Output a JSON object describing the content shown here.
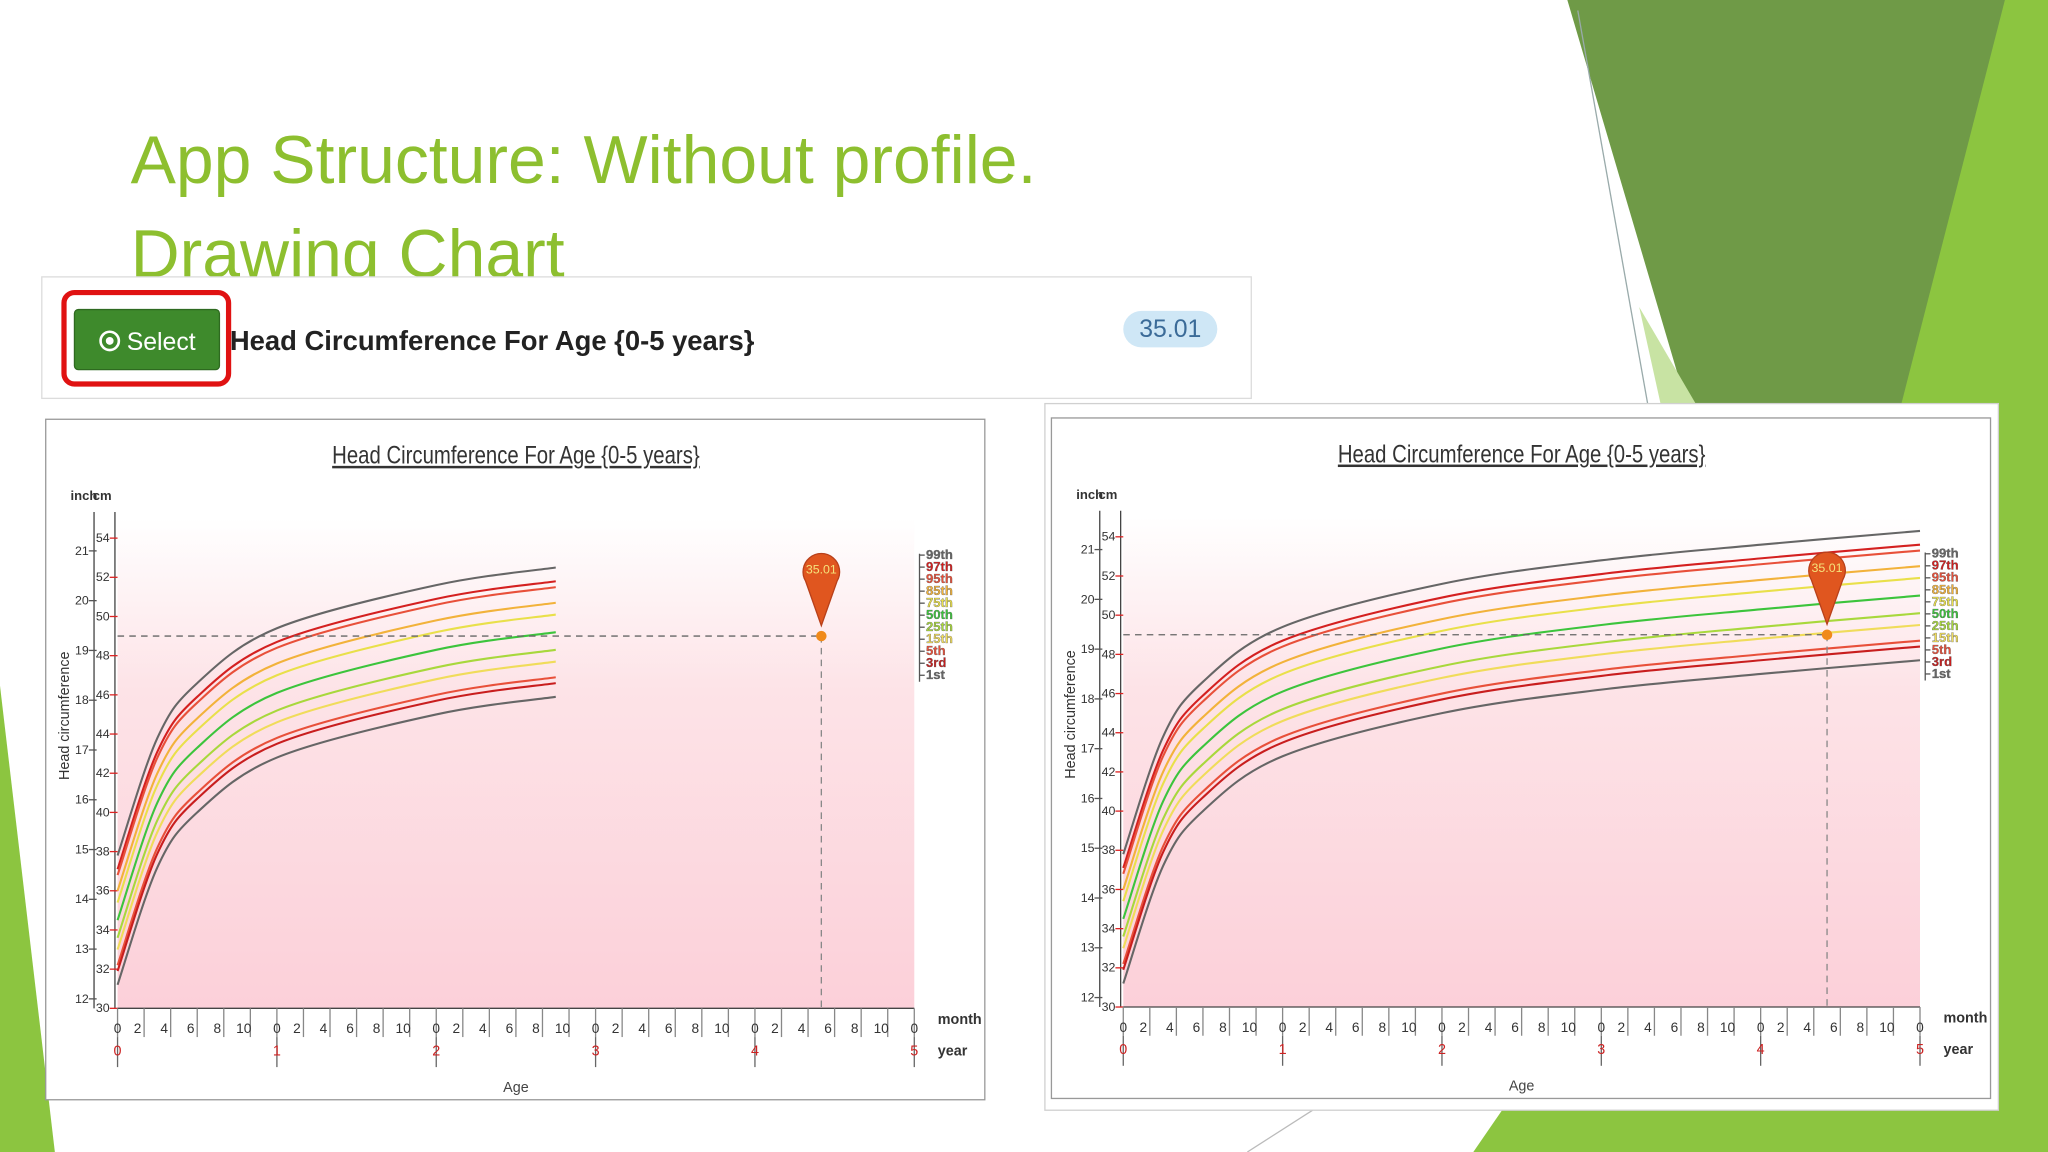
{
  "slide": {
    "title_line1": "App Structure: Without profile.",
    "title_line2": "Drawing Chart"
  },
  "select_bar": {
    "button": "Select",
    "label": "Head Circumference For Age {0-5 years}",
    "badge": "35.01"
  },
  "chart_data": [
    {
      "type": "line",
      "title": "Head Circumference For Age {0-5 years}",
      "y_label": "Head circumference",
      "y_unit": "cm",
      "y2_unit": "inch",
      "x_label": "Age",
      "x_unit": "month",
      "x2_unit": "year",
      "x": [
        0,
        3,
        6,
        12,
        24,
        33
      ],
      "series": [
        {
          "name": "99th",
          "color": "#666666",
          "values": [
            37.8,
            43.8,
            46.6,
            49.4,
            51.6,
            52.5
          ]
        },
        {
          "name": "97th",
          "color": "#d42020",
          "values": [
            37.1,
            43.1,
            45.9,
            48.7,
            50.9,
            51.8
          ]
        },
        {
          "name": "95th",
          "color": "#e8503a",
          "values": [
            36.8,
            42.8,
            45.6,
            48.4,
            50.6,
            51.5
          ]
        },
        {
          "name": "85th",
          "color": "#f2b23a",
          "values": [
            36.0,
            42.0,
            44.8,
            47.6,
            49.8,
            50.7
          ]
        },
        {
          "name": "75th",
          "color": "#e9e04a",
          "values": [
            35.4,
            41.4,
            44.2,
            47.0,
            49.2,
            50.1
          ]
        },
        {
          "name": "50th",
          "color": "#3cc43c",
          "values": [
            34.5,
            40.5,
            43.3,
            46.1,
            48.3,
            49.2
          ]
        },
        {
          "name": "25th",
          "color": "#a8d83c",
          "values": [
            33.6,
            39.6,
            42.4,
            45.2,
            47.4,
            48.3
          ]
        },
        {
          "name": "15th",
          "color": "#f0dc5a",
          "values": [
            33.0,
            39.0,
            41.8,
            44.6,
            46.8,
            47.7
          ]
        },
        {
          "name": "5th",
          "color": "#e8503a",
          "values": [
            32.2,
            38.2,
            41.0,
            43.8,
            46.0,
            46.9
          ]
        },
        {
          "name": "3rd",
          "color": "#c81e1e",
          "values": [
            31.9,
            37.9,
            40.7,
            43.5,
            45.7,
            46.6
          ]
        },
        {
          "name": "1st",
          "color": "#666666",
          "values": [
            31.2,
            37.2,
            40.0,
            42.8,
            45.0,
            45.9
          ]
        }
      ],
      "xlim": [
        0,
        60
      ],
      "xticks": [
        0,
        2,
        4,
        6,
        8,
        10,
        {
          "value": 12,
          "label": "0"
        },
        {
          "value": 14,
          "label": "2"
        },
        {
          "value": 16,
          "label": "4"
        },
        {
          "value": 18,
          "label": "6"
        },
        {
          "value": 20,
          "label": "8"
        },
        {
          "value": 22,
          "label": "10"
        },
        {
          "value": 24,
          "label": "0"
        },
        {
          "value": 26,
          "label": "2"
        },
        {
          "value": 28,
          "label": "4"
        },
        {
          "value": 30,
          "label": "6"
        },
        {
          "value": 32,
          "label": "8"
        },
        {
          "value": 34,
          "label": "10"
        },
        {
          "value": 36,
          "label": "0"
        },
        {
          "value": 38,
          "label": "2"
        },
        {
          "value": 40,
          "label": "4"
        },
        {
          "value": 42,
          "label": "6"
        },
        {
          "value": 44,
          "label": "8"
        },
        {
          "value": 46,
          "label": "10"
        },
        {
          "value": 48,
          "label": "0"
        },
        {
          "value": 50,
          "label": "2"
        },
        {
          "value": 52,
          "label": "4"
        },
        {
          "value": 54,
          "label": "6"
        },
        {
          "value": 56,
          "label": "8"
        },
        {
          "value": 58,
          "label": "10"
        },
        {
          "value": 60,
          "label": "0"
        }
      ],
      "x2lim": [
        0,
        5
      ],
      "x2ticks": [
        0,
        1,
        2,
        3,
        4,
        5
      ],
      "ylim": [
        30,
        55
      ],
      "yticks": [
        30,
        32,
        34,
        36,
        38,
        40,
        42,
        44,
        46,
        48,
        50,
        52,
        54
      ],
      "y2lim": [
        11.81,
        21.65
      ],
      "y2ticks": [
        12,
        13,
        14,
        15,
        16,
        17,
        18,
        19,
        20,
        21
      ],
      "marker": {
        "x": 53,
        "y": 49,
        "label": "35.01"
      }
    },
    {
      "type": "line",
      "title": "Head Circumference For Age {0-5 years}",
      "y_label": "Head circumference",
      "y_unit": "cm",
      "y2_unit": "inch",
      "x_label": "Age",
      "x_unit": "month",
      "x2_unit": "year",
      "x": [
        0,
        3,
        6,
        12,
        24,
        36,
        48,
        60
      ],
      "series": [
        {
          "name": "99th",
          "color": "#666666",
          "values": [
            37.8,
            43.8,
            46.6,
            49.4,
            51.6,
            52.8,
            53.6,
            54.3
          ]
        },
        {
          "name": "97th",
          "color": "#d42020",
          "values": [
            37.1,
            43.1,
            45.9,
            48.7,
            50.9,
            52.1,
            52.9,
            53.6
          ]
        },
        {
          "name": "95th",
          "color": "#e8503a",
          "values": [
            36.8,
            42.8,
            45.6,
            48.4,
            50.6,
            51.8,
            52.6,
            53.3
          ]
        },
        {
          "name": "85th",
          "color": "#f2b23a",
          "values": [
            36.0,
            42.0,
            44.8,
            47.6,
            49.8,
            51.0,
            51.8,
            52.5
          ]
        },
        {
          "name": "75th",
          "color": "#e9e04a",
          "values": [
            35.4,
            41.4,
            44.2,
            47.0,
            49.2,
            50.4,
            51.2,
            51.9
          ]
        },
        {
          "name": "50th",
          "color": "#3cc43c",
          "values": [
            34.5,
            40.5,
            43.3,
            46.1,
            48.3,
            49.5,
            50.3,
            51.0
          ]
        },
        {
          "name": "25th",
          "color": "#a8d83c",
          "values": [
            33.6,
            39.6,
            42.4,
            45.2,
            47.4,
            48.6,
            49.4,
            50.1
          ]
        },
        {
          "name": "15th",
          "color": "#f0dc5a",
          "values": [
            33.0,
            39.0,
            41.8,
            44.6,
            46.8,
            48.0,
            48.8,
            49.5
          ]
        },
        {
          "name": "5th",
          "color": "#e8503a",
          "values": [
            32.2,
            38.2,
            41.0,
            43.8,
            46.0,
            47.2,
            48.0,
            48.7
          ]
        },
        {
          "name": "3rd",
          "color": "#c81e1e",
          "values": [
            31.9,
            37.9,
            40.7,
            43.5,
            45.7,
            46.9,
            47.7,
            48.4
          ]
        },
        {
          "name": "1st",
          "color": "#666666",
          "values": [
            31.2,
            37.2,
            40.0,
            42.8,
            45.0,
            46.2,
            47.0,
            47.7
          ]
        }
      ],
      "xlim": [
        0,
        60
      ],
      "xticks": [
        0,
        2,
        4,
        6,
        8,
        10,
        {
          "value": 12,
          "label": "0"
        },
        {
          "value": 14,
          "label": "2"
        },
        {
          "value": 16,
          "label": "4"
        },
        {
          "value": 18,
          "label": "6"
        },
        {
          "value": 20,
          "label": "8"
        },
        {
          "value": 22,
          "label": "10"
        },
        {
          "value": 24,
          "label": "0"
        },
        {
          "value": 26,
          "label": "2"
        },
        {
          "value": 28,
          "label": "4"
        },
        {
          "value": 30,
          "label": "6"
        },
        {
          "value": 32,
          "label": "8"
        },
        {
          "value": 34,
          "label": "10"
        },
        {
          "value": 36,
          "label": "0"
        },
        {
          "value": 38,
          "label": "2"
        },
        {
          "value": 40,
          "label": "4"
        },
        {
          "value": 42,
          "label": "6"
        },
        {
          "value": 44,
          "label": "8"
        },
        {
          "value": 46,
          "label": "10"
        },
        {
          "value": 48,
          "label": "0"
        },
        {
          "value": 50,
          "label": "2"
        },
        {
          "value": 52,
          "label": "4"
        },
        {
          "value": 54,
          "label": "6"
        },
        {
          "value": 56,
          "label": "8"
        },
        {
          "value": 58,
          "label": "10"
        },
        {
          "value": 60,
          "label": "0"
        }
      ],
      "x2lim": [
        0,
        5
      ],
      "x2ticks": [
        0,
        1,
        2,
        3,
        4,
        5
      ],
      "ylim": [
        30,
        55
      ],
      "yticks": [
        30,
        32,
        34,
        36,
        38,
        40,
        42,
        44,
        46,
        48,
        50,
        52,
        54
      ],
      "y2lim": [
        11.81,
        21.65
      ],
      "y2ticks": [
        12,
        13,
        14,
        15,
        16,
        17,
        18,
        19,
        20,
        21
      ],
      "marker": {
        "x": 53,
        "y": 49,
        "label": "35.01"
      }
    }
  ]
}
